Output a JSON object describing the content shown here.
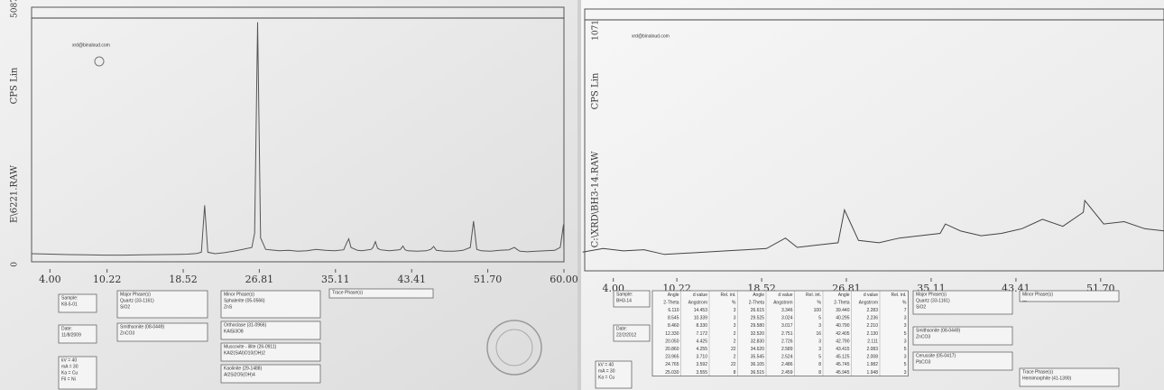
{
  "chart_data": [
    {
      "type": "line",
      "ylabel": "CPS Lin",
      "file": "E\\6221.RAW",
      "color": "#555555",
      "xlim": [
        2,
        60
      ],
      "ylim": [
        0,
        5087
      ],
      "xticks": [
        {
          "value": 4,
          "label": "4.00"
        },
        10.22,
        18.52,
        26.81,
        35.11,
        43.41,
        {
          "value": 51.7,
          "label": "51.70"
        },
        {
          "value": 60,
          "label": "60.00"
        }
      ],
      "yticks": [
        0,
        5087
      ],
      "x": [
        2,
        4,
        6,
        8,
        10,
        12,
        14,
        16,
        18,
        19,
        20,
        20.5,
        20.85,
        21.2,
        22,
        23,
        24,
        25,
        26,
        26.3,
        26.63,
        26.95,
        27.5,
        28,
        29,
        30,
        31,
        32,
        33,
        34,
        35,
        36,
        36.3,
        36.55,
        36.8,
        37.5,
        38,
        39,
        39.2,
        39.45,
        39.7,
        40,
        41,
        42,
        42.2,
        42.45,
        42.7,
        43,
        44,
        45,
        45.5,
        45.8,
        46.1,
        47,
        48,
        49,
        49.8,
        50.15,
        50.5,
        51,
        52,
        53,
        54,
        54.6,
        54.88,
        55.2,
        56,
        57,
        58,
        59,
        59.6,
        59.95,
        60
      ],
      "values": [
        170,
        160,
        150,
        145,
        140,
        140,
        145,
        150,
        155,
        160,
        175,
        200,
        1180,
        200,
        170,
        190,
        220,
        260,
        300,
        600,
        5000,
        500,
        260,
        250,
        230,
        240,
        220,
        230,
        260,
        240,
        230,
        250,
        380,
        480,
        300,
        240,
        230,
        260,
        300,
        420,
        280,
        250,
        230,
        250,
        260,
        330,
        250,
        230,
        220,
        230,
        260,
        320,
        240,
        220,
        220,
        240,
        300,
        850,
        260,
        230,
        220,
        240,
        250,
        300,
        260,
        220,
        210,
        220,
        230,
        240,
        300,
        780,
        250
      ]
    },
    {
      "type": "line",
      "ylabel": "CPS Lin",
      "file": "C:\\XRD\\BH3-14.RAW",
      "color": "#444444",
      "xlim": [
        1.2,
        57.9
      ],
      "ylim": [
        0,
        1071
      ],
      "xticks": [
        {
          "value": 4,
          "label": "4.00"
        },
        10.22,
        18.52,
        26.81,
        35.11,
        43.41,
        {
          "value": 51.7,
          "label": "51.70"
        }
      ],
      "yticks": [
        1071
      ],
      "x": [
        1,
        3,
        5,
        7,
        9,
        11,
        13,
        15,
        17,
        19,
        20.85,
        22,
        24,
        26,
        26.63,
        28,
        30,
        32,
        34,
        36,
        36.5,
        38,
        40,
        42,
        44,
        46,
        48,
        50,
        50.15,
        52,
        54,
        56,
        58
      ],
      "values": [
        80,
        95,
        85,
        90,
        70,
        75,
        80,
        85,
        90,
        95,
        140,
        100,
        110,
        120,
        260,
        130,
        120,
        140,
        150,
        160,
        200,
        170,
        150,
        160,
        180,
        220,
        190,
        250,
        300,
        200,
        210,
        180,
        170
      ]
    }
  ],
  "printouts": [
    {
      "email": "xrd@binaloud.com",
      "boxes": [
        {
          "lines": [
            "Sample:",
            "K8-5-01"
          ]
        },
        {
          "lines": [
            "Major Phase(s)",
            "Quartz  (33-1161)",
            "SiO2"
          ]
        },
        {
          "lines": [
            "Minor Phase(s)",
            "Sphalerite  (05-0566)",
            "ZnS"
          ]
        },
        {
          "lines": [
            "Trace Phase(s)"
          ]
        },
        {
          "lines": [
            "Date:",
            "11/8/2009"
          ]
        },
        {
          "lines": [
            "Smithsonite  (08-0449)",
            "ZnCO3"
          ]
        },
        {
          "lines": [
            "Orthoclase  (31-0966)",
            "KAlSi3O8"
          ]
        },
        {
          "lines": [
            "Muscovite - illite  (26-0911)",
            "KAl2(SiAl)O10(OH)2"
          ]
        },
        {
          "lines": [
            "Kaolinite  (29-1488)",
            "Al2Si2O5(OH)4"
          ]
        },
        {
          "lines": [
            "kV = 40",
            "mA = 30",
            "Ka = Cu",
            "Fil = Ni"
          ]
        }
      ]
    },
    {
      "email": "xrd@binaloud.com",
      "boxes": [
        {
          "lines": [
            "Sample:",
            "BH3-14"
          ]
        },
        {
          "lines": [
            "Date:",
            "22/2/2012"
          ]
        },
        {
          "lines": [
            "Major Phase(s)",
            "Quartz  (33-1161)",
            "SiO2"
          ]
        },
        {
          "lines": [
            "Minor Phase(s)",
            "---"
          ]
        },
        {
          "lines": [
            "Smithsonite  (08-0449)",
            "ZnCO3"
          ]
        },
        {
          "lines": [
            "Cerussite  (05-0417)",
            "PbCO3"
          ]
        },
        {
          "lines": [
            "Trace Phase(s)",
            "Hemimorphite  (41-1390)"
          ]
        },
        {
          "lines": [
            "kV = 40",
            "mA = 30",
            "Ka = Cu"
          ]
        }
      ],
      "table": {
        "header": [
          "Angle",
          "d value",
          "Rel. int.",
          "Angle",
          "d value",
          "Rel. int.",
          "Angle",
          "d value",
          "Rel. int."
        ],
        "units": [
          "2-Theta",
          "Angstrom",
          "%",
          "2-Theta",
          "Angstrom",
          "%",
          "2-Theta",
          "Angstrom",
          "%"
        ],
        "rows": [
          [
            "6.110",
            "14.453",
            "3",
            "26.615",
            "3.346",
            "100",
            "39.440",
            "2.283",
            "7"
          ],
          [
            "8.545",
            "10.339",
            "3",
            "29.525",
            "3.024",
            "5",
            "40.295",
            "2.236",
            "3"
          ],
          [
            "8.460",
            "8.330",
            "3",
            "29.580",
            "3.017",
            "3",
            "40.790",
            "2.210",
            "3"
          ],
          [
            "12.330",
            "7.172",
            "2",
            "32.520",
            "2.751",
            "16",
            "42.405",
            "2.130",
            "5"
          ],
          [
            "20.050",
            "4.425",
            "2",
            "32.830",
            "2.726",
            "3",
            "42.790",
            "2.111",
            "3"
          ],
          [
            "20.860",
            "4.255",
            "22",
            "34.620",
            "2.589",
            "3",
            "43.415",
            "2.083",
            "5"
          ],
          [
            "23.965",
            "3.710",
            "2",
            "35.545",
            "2.524",
            "5",
            "45.125",
            "2.008",
            "3"
          ],
          [
            "24.765",
            "3.592",
            "22",
            "36.105",
            "2.486",
            "8",
            "45.745",
            "1.982",
            "5"
          ],
          [
            "25.030",
            "3.555",
            "8",
            "36.515",
            "2.459",
            "8",
            "45.945",
            "1.948",
            "3"
          ]
        ]
      }
    }
  ]
}
